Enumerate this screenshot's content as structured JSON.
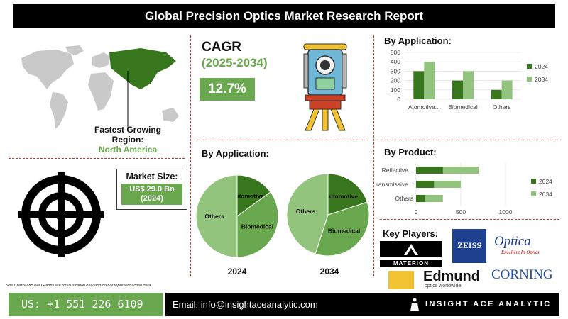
{
  "header": {
    "title": "Global Precision Optics Market Research Report"
  },
  "region": {
    "label": "Fastest Growing Region:",
    "value": "North America"
  },
  "market_size": {
    "label": "Market Size:",
    "value": "US$ 29.0 Bn",
    "year": "(2024)"
  },
  "cagr": {
    "title": "CAGR",
    "period": "(2025-2034)",
    "value": "12.7%"
  },
  "pie_section": {
    "title": "By Application:"
  },
  "bar_app": {
    "title": "By Application:"
  },
  "bar_prod": {
    "title": "By Product:"
  },
  "key_players": {
    "title": "Key Players:",
    "logos": [
      "MATERION",
      "ZEISS",
      "Optica",
      "Excellent In Optics",
      "Edmund",
      "optics worldwide",
      "CORNING"
    ]
  },
  "disclaimer": "*Pie Charts and Bar Graphs are for illustration only and do not represent actual data.",
  "footer": {
    "phone": "US: +1 551 226 6109",
    "email": "Email: info@insightaceanalytic.com",
    "brand": "INSIGHT ACE ANALYTIC"
  },
  "colors": {
    "accent_green": "#6aa84f",
    "dark_green": "#38761d",
    "light_green": "#93c47d",
    "divider_red": "#c0392b"
  },
  "chart_data": [
    {
      "type": "bar",
      "title": "By Application:",
      "categories": [
        "Atomotive...",
        "Biomedical",
        "Others"
      ],
      "series": [
        {
          "name": "2024",
          "values": [
            300,
            200,
            100
          ]
        },
        {
          "name": "2034",
          "values": [
            400,
            300,
            200
          ]
        }
      ],
      "ylim": [
        0,
        500
      ],
      "yticks": [
        0,
        100,
        200,
        300,
        400,
        500
      ],
      "legend": "right",
      "colors": [
        "#38761d",
        "#93c47d"
      ]
    },
    {
      "type": "bar",
      "orientation": "horizontal",
      "title": "By Product:",
      "categories": [
        "Reflective...",
        "Transmissive...",
        "Others"
      ],
      "series": [
        {
          "name": "2024",
          "values": [
            300,
            200,
            100
          ]
        },
        {
          "name": "2034",
          "values": [
            700,
            500,
            300
          ]
        }
      ],
      "xlim": [
        0,
        1000
      ],
      "xticks": [
        0,
        500,
        1000
      ],
      "legend": "right",
      "colors": [
        "#38761d",
        "#93c47d"
      ]
    },
    {
      "type": "pie",
      "year": "2024",
      "slices": [
        {
          "label": "Automotive",
          "value": 15
        },
        {
          "label": "Biomedical",
          "value": 35
        },
        {
          "label": "Others",
          "value": 50
        }
      ],
      "colors": [
        "#38761d",
        "#6aa84f",
        "#93c47d"
      ]
    },
    {
      "type": "pie",
      "year": "2034",
      "slices": [
        {
          "label": "Automotive",
          "value": 20
        },
        {
          "label": "Biomedical",
          "value": 35
        },
        {
          "label": "Others",
          "value": 45
        }
      ],
      "colors": [
        "#38761d",
        "#6aa84f",
        "#93c47d"
      ]
    }
  ]
}
